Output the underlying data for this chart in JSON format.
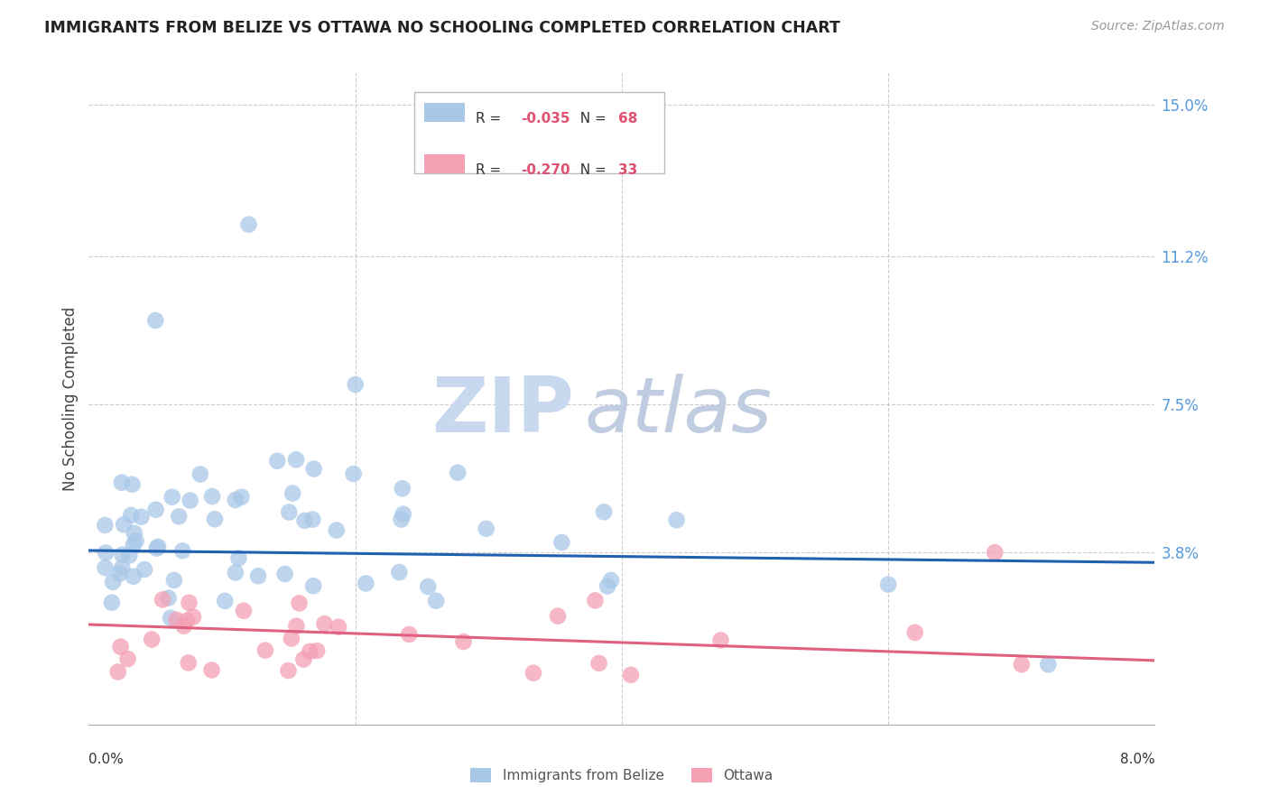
{
  "title": "IMMIGRANTS FROM BELIZE VS OTTAWA NO SCHOOLING COMPLETED CORRELATION CHART",
  "source": "Source: ZipAtlas.com",
  "ylabel": "No Schooling Completed",
  "y_tick_labels": [
    "",
    "3.8%",
    "7.5%",
    "11.2%",
    "15.0%"
  ],
  "y_tick_values": [
    0.0,
    0.038,
    0.075,
    0.112,
    0.15
  ],
  "x_range": [
    0.0,
    0.08
  ],
  "y_range": [
    -0.005,
    0.158
  ],
  "blue_line_color": "#2060b0",
  "pink_line_color": "#e06080",
  "blue_scatter_color": "#a8c8e8",
  "pink_scatter_color": "#f4a0b5",
  "grid_color": "#cccccc",
  "background_color": "#ffffff",
  "title_color": "#222222",
  "axis_label_color": "#444444",
  "right_tick_color": "#5599dd",
  "watermark_zip_color": "#c8d8ee",
  "watermark_atlas_color": "#c0cce0",
  "blue_trend_y0": 0.0385,
  "blue_trend_y1": 0.0355,
  "pink_trend_y0": 0.02,
  "pink_trend_y1": 0.011
}
